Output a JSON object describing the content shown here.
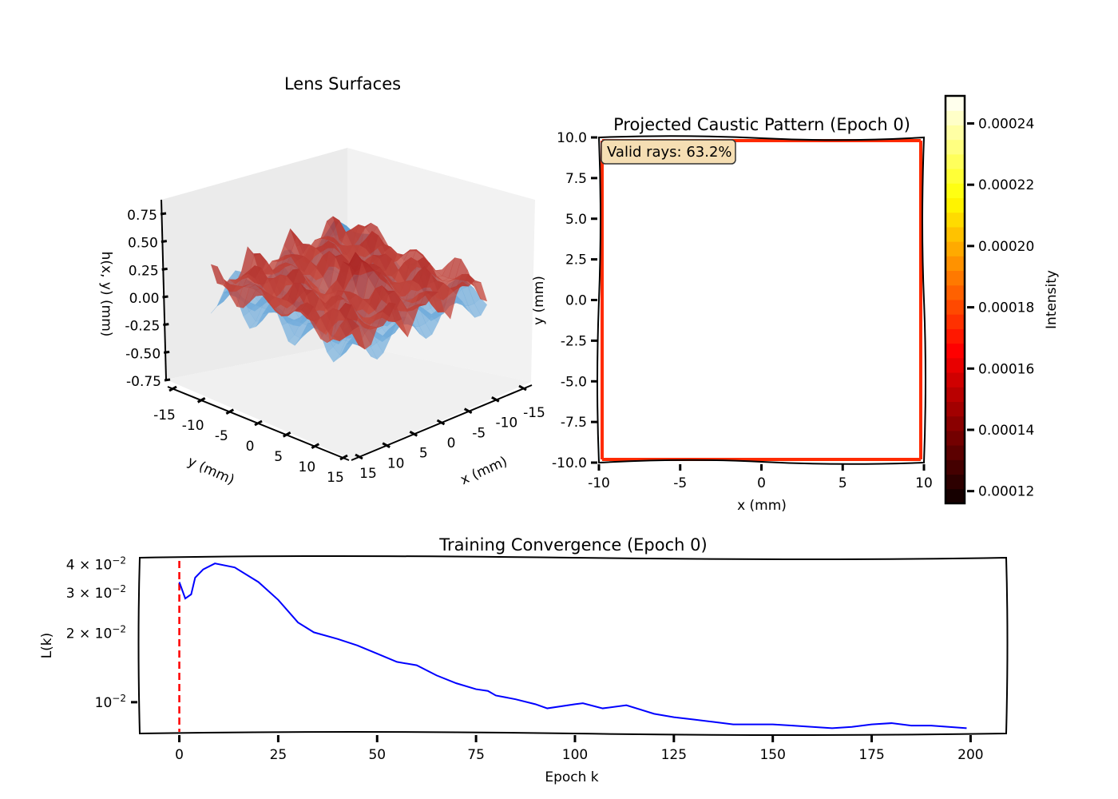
{
  "chart_data": [
    {
      "type": "surface3d",
      "title": "Lens Surfaces",
      "xlabel": "x (mm)",
      "ylabel": "y (mm)",
      "zlabel": "h(x, y) (mm)",
      "xlim": [
        -15,
        15
      ],
      "ylim": [
        -15,
        15
      ],
      "zlim": [
        -0.75,
        0.75
      ],
      "xticks": [
        "-15",
        "-10",
        "-5",
        "0",
        "5",
        "10",
        "15"
      ],
      "yticks": [
        "-15",
        "-10",
        "-5",
        "0",
        "5",
        "10",
        "15"
      ],
      "zticks": [
        "0.75",
        "0.50",
        "0.25",
        "0.00",
        "-0.25",
        "-0.50",
        "-0.75"
      ],
      "series_colormaps": [
        "Reds",
        "Blues"
      ],
      "colors": {
        "front_surface": "#e8402f",
        "back_surface": "#4a98c9"
      }
    },
    {
      "type": "heatmap",
      "title": "Projected Caustic Pattern (Epoch 0)",
      "xlabel": "x (mm)",
      "ylabel": "y (mm)",
      "xlim": [
        -10,
        10
      ],
      "ylim": [
        -10,
        10
      ],
      "xticks": [
        "-10",
        "-5",
        "0",
        "5",
        "10"
      ],
      "yticks": [
        "10.0",
        "7.5",
        "5.0",
        "2.5",
        "0.0",
        "-2.5",
        "-5.0",
        "-7.5",
        "-10.0"
      ],
      "annotation": "Valid rays: 63.2%",
      "colormap": "hot",
      "pattern": "intensity concentrated along the square border",
      "colorbar": {
        "label": "Intensity",
        "range": [
          0.000116,
          0.000249
        ],
        "ticks": [
          "0.00024",
          "0.00022",
          "0.00020",
          "0.00018",
          "0.00016",
          "0.00014",
          "0.00012"
        ],
        "tick_values": [
          0.00024,
          0.00022,
          0.0002,
          0.00018,
          0.00016,
          0.00014,
          0.00012
        ]
      }
    },
    {
      "type": "line",
      "title": "Training Convergence (Epoch 0)",
      "xlabel": "Epoch k",
      "ylabel": "L(k)",
      "yscale": "log",
      "xlim": [
        -10,
        209
      ],
      "ylim": [
        0.0073,
        0.0428
      ],
      "xticks": [
        "0",
        "25",
        "50",
        "75",
        "100",
        "125",
        "150",
        "175",
        "200"
      ],
      "xtick_values": [
        0,
        25,
        50,
        75,
        100,
        125,
        150,
        175,
        200
      ],
      "yticks": [
        {
          "base": "4 × 10",
          "exp": "−2",
          "value": 0.04
        },
        {
          "base": "3 × 10",
          "exp": "−2",
          "value": 0.03
        },
        {
          "base": "2 × 10",
          "exp": "−2",
          "value": 0.02
        },
        {
          "base": "10",
          "exp": "−2",
          "value": 0.01
        }
      ],
      "series": [
        {
          "color": "#0000ff",
          "x": [
            0,
            1.5,
            3,
            4,
            6,
            9,
            14,
            20,
            25,
            30,
            34,
            40,
            45,
            50,
            55,
            60,
            65,
            70,
            75,
            78,
            80,
            85,
            90,
            93,
            100,
            102,
            107,
            113,
            120,
            125,
            130,
            135,
            140,
            150,
            155,
            160,
            165,
            170,
            175,
            180,
            185,
            190,
            199
          ],
          "y": [
            0.0335,
            0.0284,
            0.0296,
            0.035,
            0.038,
            0.0404,
            0.0388,
            0.0335,
            0.028,
            0.0223,
            0.0202,
            0.0189,
            0.0177,
            0.0163,
            0.015,
            0.0145,
            0.0131,
            0.0121,
            0.0114,
            0.0112,
            0.0107,
            0.0103,
            0.0098,
            0.0094,
            0.0098,
            0.0099,
            0.0094,
            0.0097,
            0.0089,
            0.0086,
            0.0084,
            0.0082,
            0.008,
            0.008,
            0.0079,
            0.0078,
            0.0077,
            0.0078,
            0.008,
            0.0081,
            0.0079,
            0.0079,
            0.0077
          ]
        }
      ],
      "vline": {
        "x": 0,
        "color": "#ff0000",
        "style": "dashed"
      }
    }
  ]
}
